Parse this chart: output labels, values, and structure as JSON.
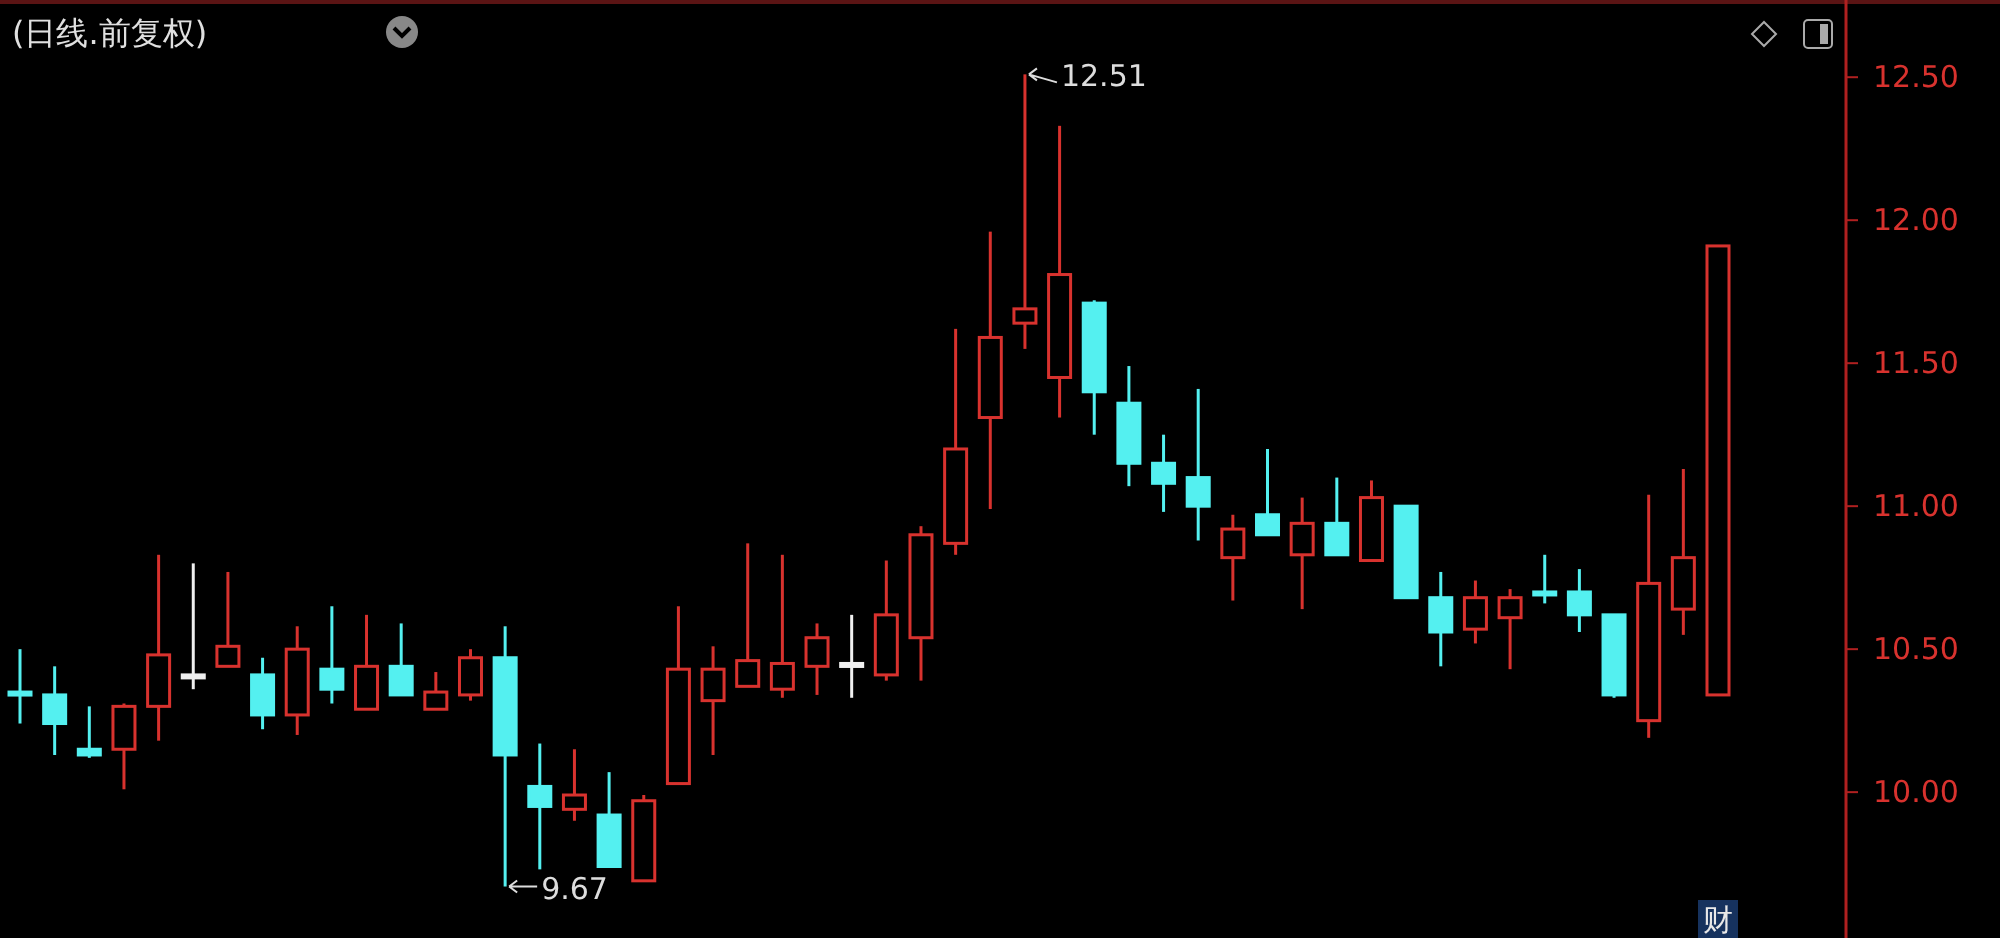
{
  "chart_data": {
    "type": "candlestick",
    "title": "(日线.前复权)",
    "categories": [
      null,
      null,
      null,
      null,
      null,
      null,
      null,
      null,
      null,
      null,
      null,
      null,
      null,
      null,
      null,
      null,
      null,
      null,
      null,
      null,
      null,
      null,
      null,
      null,
      null,
      null,
      null,
      null,
      null,
      null,
      null,
      null,
      null,
      null,
      null,
      null,
      null,
      null,
      null,
      null,
      null,
      null,
      null,
      null,
      null,
      null,
      null,
      null,
      null,
      null
    ],
    "ohlc": [
      [
        10.35,
        10.5,
        10.24,
        10.34
      ],
      [
        10.34,
        10.44,
        10.13,
        10.24
      ],
      [
        10.15,
        10.3,
        10.12,
        10.13
      ],
      [
        10.15,
        10.31,
        10.01,
        10.3
      ],
      [
        10.3,
        10.83,
        10.18,
        10.48
      ],
      [
        10.41,
        10.8,
        10.36,
        10.41
      ],
      [
        10.44,
        10.77,
        10.44,
        10.51
      ],
      [
        10.41,
        10.47,
        10.22,
        10.27
      ],
      [
        10.27,
        10.58,
        10.2,
        10.5
      ],
      [
        10.43,
        10.65,
        10.31,
        10.36
      ],
      [
        10.29,
        10.62,
        10.29,
        10.44
      ],
      [
        10.44,
        10.59,
        10.34,
        10.34
      ],
      [
        10.29,
        10.42,
        10.29,
        10.35
      ],
      [
        10.34,
        10.5,
        10.32,
        10.47
      ],
      [
        10.47,
        10.58,
        9.67,
        10.13
      ],
      [
        10.02,
        10.17,
        9.73,
        9.95
      ],
      [
        9.94,
        10.15,
        9.9,
        9.99
      ],
      [
        9.92,
        10.07,
        9.74,
        9.74
      ],
      [
        9.69,
        9.99,
        9.69,
        9.97
      ],
      [
        10.03,
        10.65,
        10.03,
        10.43
      ],
      [
        10.32,
        10.51,
        10.13,
        10.43
      ],
      [
        10.37,
        10.87,
        10.37,
        10.46
      ],
      [
        10.36,
        10.83,
        10.33,
        10.45
      ],
      [
        10.44,
        10.59,
        10.34,
        10.54
      ],
      [
        10.45,
        10.62,
        10.33,
        10.45
      ],
      [
        10.41,
        10.81,
        10.39,
        10.62
      ],
      [
        10.54,
        10.93,
        10.39,
        10.9
      ],
      [
        10.87,
        11.62,
        10.83,
        11.2
      ],
      [
        11.31,
        11.96,
        10.99,
        11.59
      ],
      [
        11.64,
        12.51,
        11.55,
        11.69
      ],
      [
        11.45,
        12.33,
        11.31,
        11.81
      ],
      [
        11.71,
        11.72,
        11.25,
        11.4
      ],
      [
        11.36,
        11.49,
        11.07,
        11.15
      ],
      [
        11.15,
        11.25,
        10.98,
        11.08
      ],
      [
        11.1,
        11.41,
        10.88,
        11.0
      ],
      [
        10.82,
        10.97,
        10.67,
        10.92
      ],
      [
        10.97,
        11.2,
        10.9,
        10.9
      ],
      [
        10.83,
        11.03,
        10.64,
        10.94
      ],
      [
        10.94,
        11.1,
        10.83,
        10.83
      ],
      [
        10.81,
        11.09,
        10.81,
        11.03
      ],
      [
        11.0,
        11.0,
        10.68,
        10.68
      ],
      [
        10.68,
        10.77,
        10.44,
        10.56
      ],
      [
        10.57,
        10.74,
        10.52,
        10.68
      ],
      [
        10.61,
        10.71,
        10.43,
        10.68
      ],
      [
        10.7,
        10.83,
        10.66,
        10.69
      ],
      [
        10.7,
        10.78,
        10.56,
        10.62
      ],
      [
        10.62,
        10.62,
        10.33,
        10.34
      ],
      [
        10.25,
        11.04,
        10.19,
        10.73
      ],
      [
        10.64,
        11.13,
        10.55,
        10.82
      ],
      [
        10.34,
        11.91,
        10.34,
        11.91
      ]
    ],
    "colors": [
      "#54f0f0",
      "#54f0f0",
      "#54f0f0",
      "#d8322e",
      "#d8322e",
      "#f0f0f0",
      "#d8322e",
      "#54f0f0",
      "#d8322e",
      "#54f0f0",
      "#d8322e",
      "#54f0f0",
      "#d8322e",
      "#d8322e",
      "#54f0f0",
      "#54f0f0",
      "#d8322e",
      "#54f0f0",
      "#d8322e",
      "#d8322e",
      "#d8322e",
      "#d8322e",
      "#d8322e",
      "#d8322e",
      "#f0f0f0",
      "#d8322e",
      "#d8322e",
      "#d8322e",
      "#d8322e",
      "#d8322e",
      "#d8322e",
      "#54f0f0",
      "#54f0f0",
      "#54f0f0",
      "#54f0f0",
      "#d8322e",
      "#54f0f0",
      "#d8322e",
      "#54f0f0",
      "#d8322e",
      "#54f0f0",
      "#54f0f0",
      "#d8322e",
      "#d8322e",
      "#54f0f0",
      "#54f0f0",
      "#54f0f0",
      "#d8322e",
      "#d8322e",
      "#d8322e"
    ],
    "ylim": [
      9.49,
      12.77
    ],
    "yticks": [
      {
        "value": 10,
        "label": "10.00"
      },
      {
        "value": 10.5,
        "label": "10.50"
      },
      {
        "value": 11,
        "label": "11.00"
      },
      {
        "value": 11.5,
        "label": "11.50"
      },
      {
        "value": 12,
        "label": "12.00"
      },
      {
        "value": 12.5,
        "label": "12.50"
      }
    ],
    "annotations": [
      "9.67",
      "12.51",
      "财"
    ]
  }
}
